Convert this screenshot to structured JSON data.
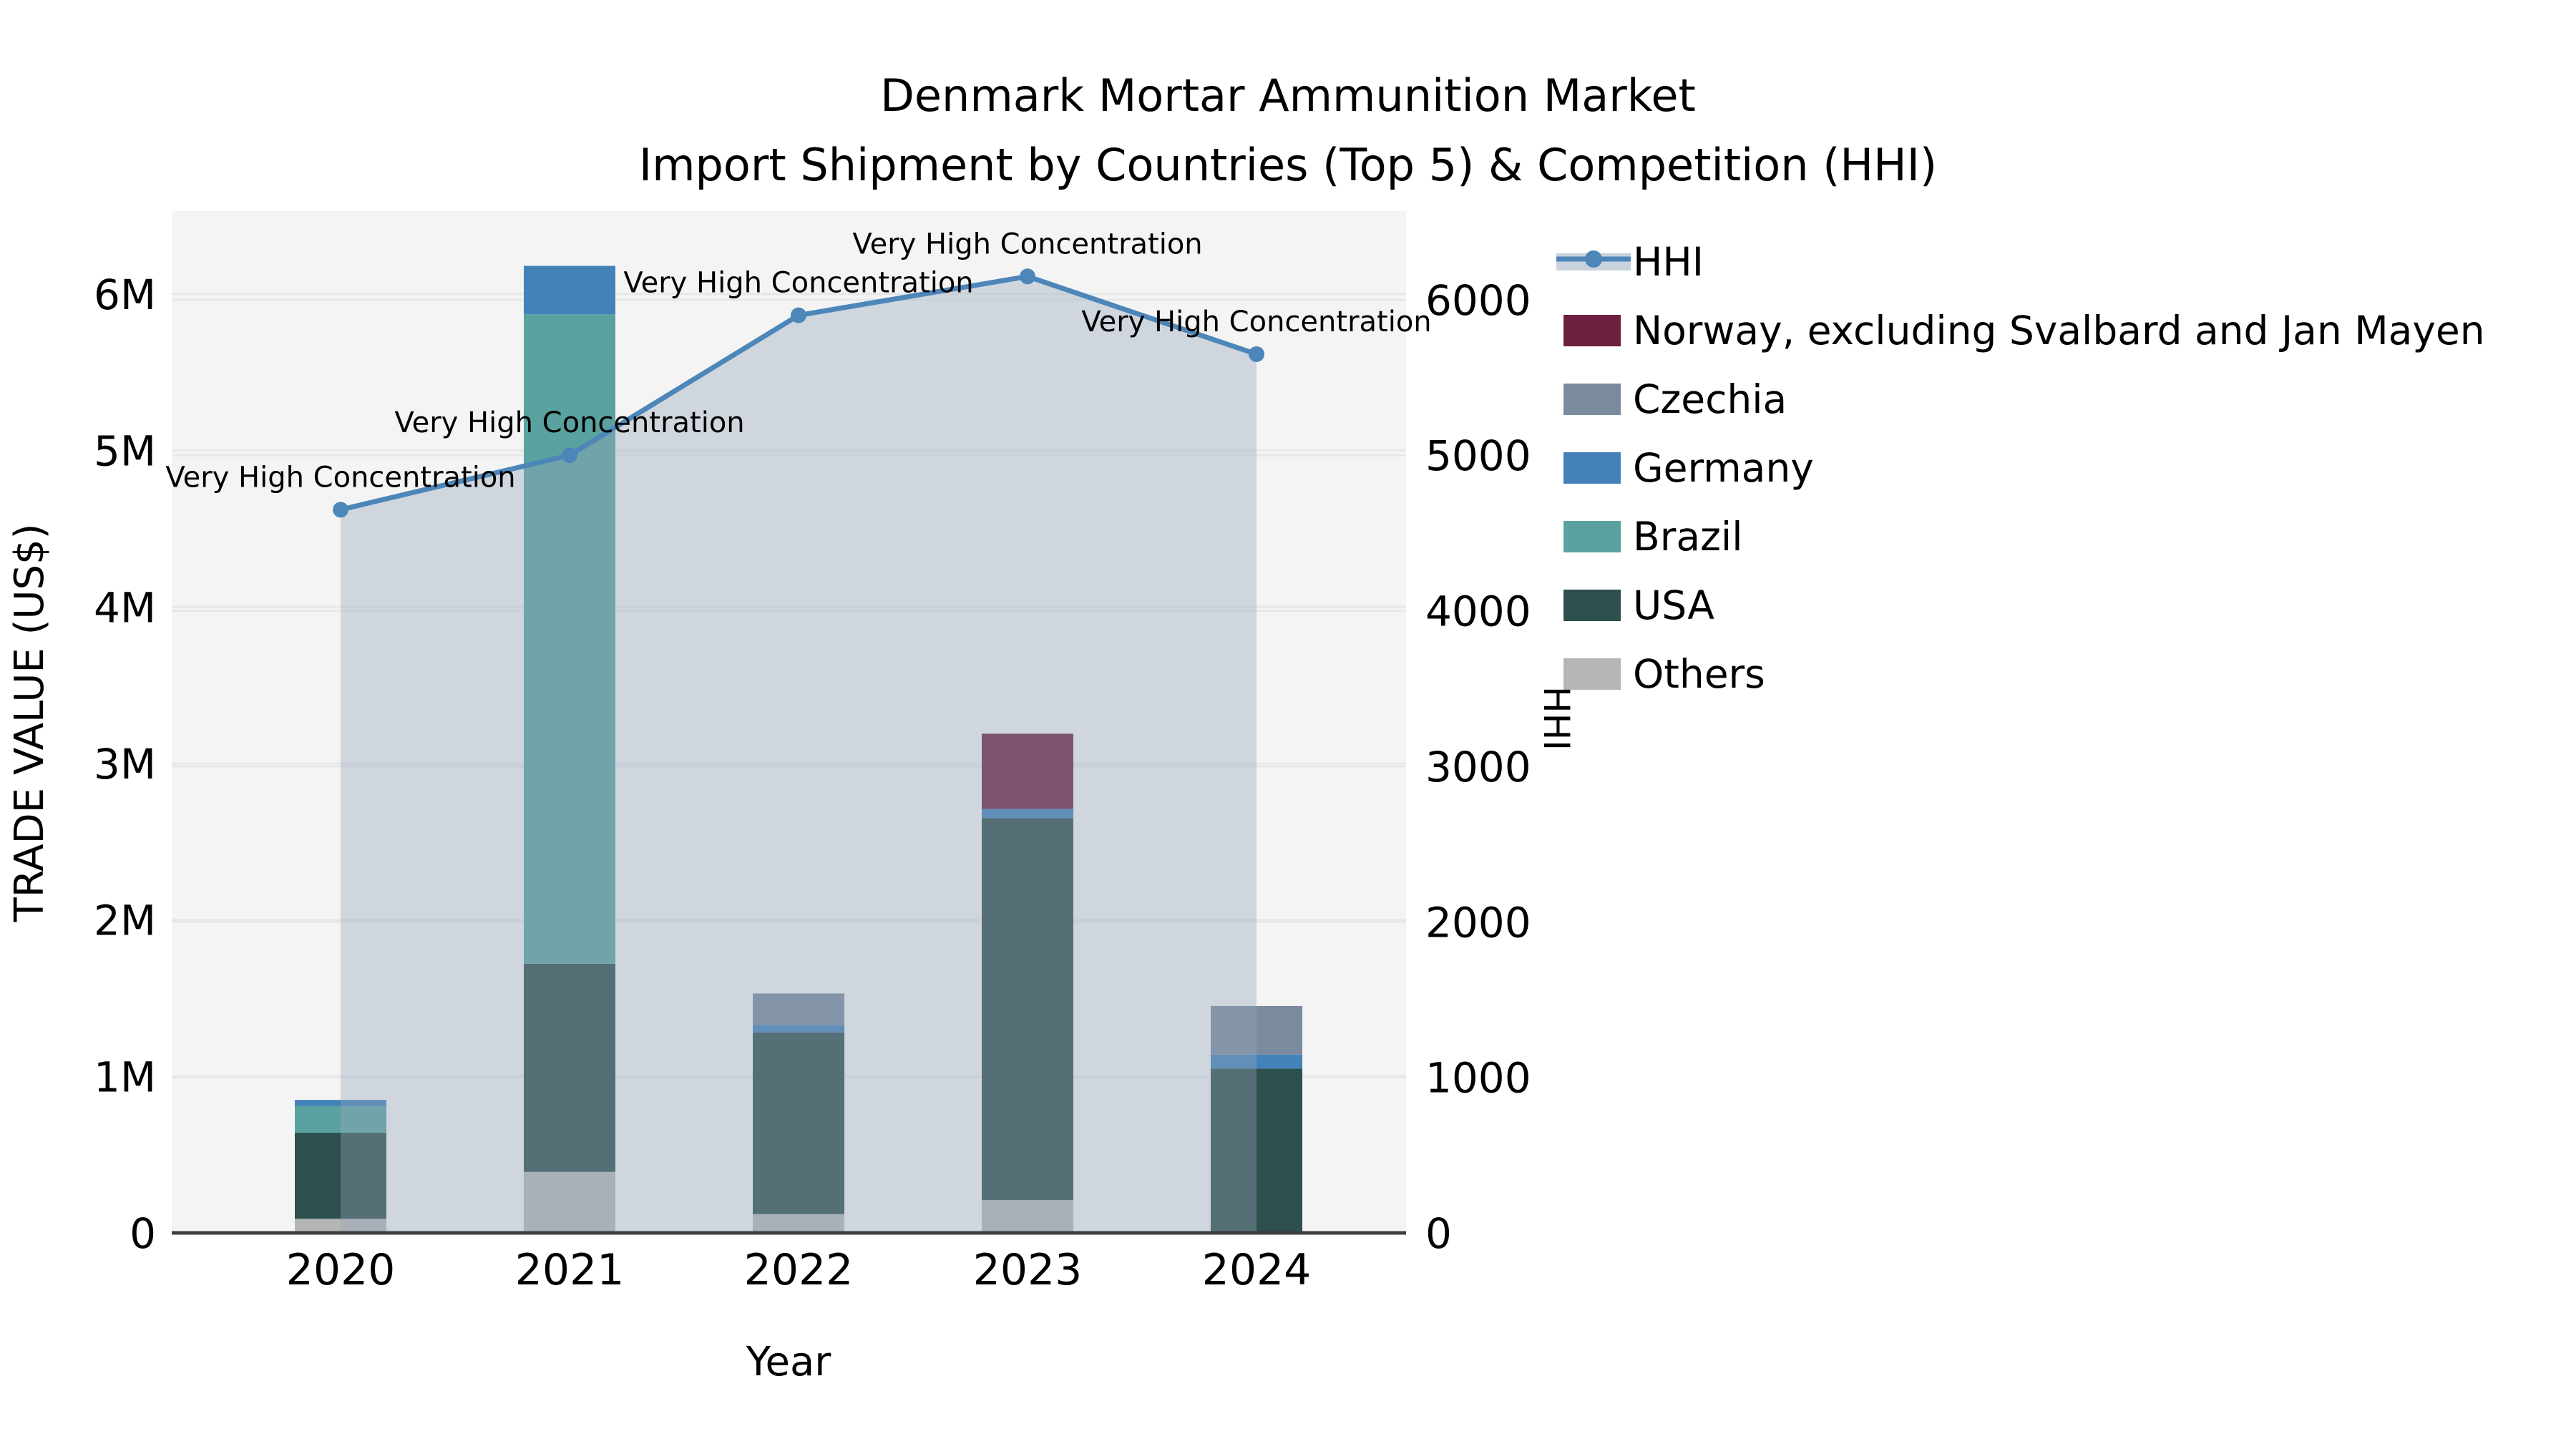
{
  "chart_data": {
    "type": "bar+line",
    "title_line1": "Denmark Mortar Ammunition Market",
    "title_line2": "Import Shipment by Countries (Top 5) & Competition (HHI)",
    "xlabel": "Year",
    "ylabel_left": "TRADE VALUE (US$)",
    "ylabel_right": "HHI",
    "categories": [
      "2020",
      "2021",
      "2022",
      "2023",
      "2024"
    ],
    "bar_series": [
      {
        "name": "Others",
        "color": "#b4b6b6",
        "values": [
          90000,
          390000,
          120000,
          210000,
          10000
        ]
      },
      {
        "name": "USA",
        "color": "#2d4f4d",
        "values": [
          550000,
          1330000,
          1160000,
          2440000,
          1040000
        ]
      },
      {
        "name": "Brazil",
        "color": "#5aa2a0",
        "values": [
          170000,
          4150000,
          0,
          0,
          0
        ]
      },
      {
        "name": "Germany",
        "color": "#4282b8",
        "values": [
          40000,
          310000,
          50000,
          60000,
          90000
        ]
      },
      {
        "name": "Czechia",
        "color": "#7b8b9e",
        "values": [
          0,
          0,
          200000,
          0,
          310000
        ]
      },
      {
        "name": "Norway, excluding Svalbard and Jan Mayen",
        "color": "#6d1f40",
        "values": [
          0,
          0,
          0,
          480000,
          0
        ]
      }
    ],
    "line_series": {
      "name": "HHI",
      "color": "#4d86b8",
      "area_color": "#96a6ba",
      "area_opacity": 0.38,
      "values": [
        4650,
        5000,
        5900,
        6150,
        5650
      ]
    },
    "annotations": [
      "Very High Concentration",
      "Very High Concentration",
      "Very High Concentration",
      "Very High Concentration",
      "Very High Concentration"
    ],
    "y_left": {
      "lim": [
        0,
        6530000
      ],
      "ticks": [
        {
          "v": 0,
          "label": "0"
        },
        {
          "v": 1000000,
          "label": "1M"
        },
        {
          "v": 2000000,
          "label": "2M"
        },
        {
          "v": 3000000,
          "label": "3M"
        },
        {
          "v": 4000000,
          "label": "4M"
        },
        {
          "v": 5000000,
          "label": "5M"
        },
        {
          "v": 6000000,
          "label": "6M"
        }
      ]
    },
    "y_right": {
      "lim": [
        0,
        6570
      ],
      "ticks": [
        {
          "v": 0,
          "label": "0"
        },
        {
          "v": 1000,
          "label": "1000"
        },
        {
          "v": 2000,
          "label": "2000"
        },
        {
          "v": 3000,
          "label": "3000"
        },
        {
          "v": 4000,
          "label": "4000"
        },
        {
          "v": 5000,
          "label": "5000"
        },
        {
          "v": 6000,
          "label": "6000"
        }
      ]
    },
    "legend_order": [
      "HHI",
      "Norway, excluding Svalbard and Jan Mayen",
      "Czechia",
      "Germany",
      "Brazil",
      "USA",
      "Others"
    ],
    "grid": true,
    "legend_position": "right",
    "plot_bg": "#f4f4f4",
    "grid_color": "#e6e8e8",
    "axis_color": "#3d3d3d"
  }
}
